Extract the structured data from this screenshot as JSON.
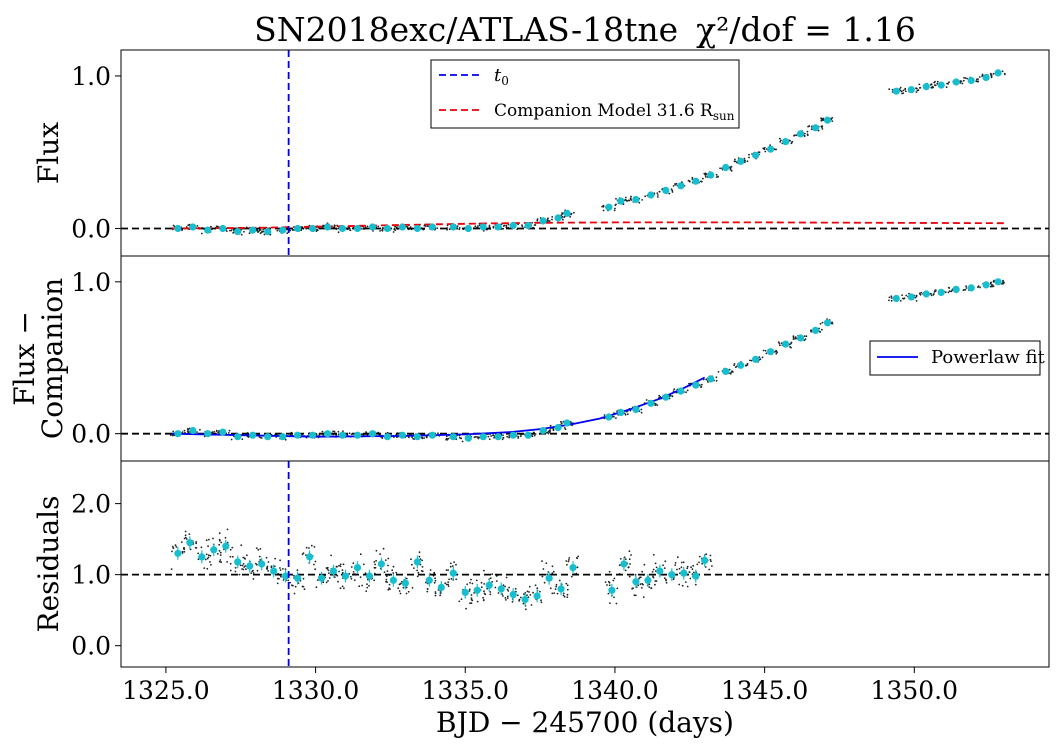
{
  "chart_data": {
    "type": "scatter",
    "title": "SN2018exc/ATLAS-18tne",
    "title_stat": "χ²/dof = 1.16",
    "xlabel": "BJD − 245700 (days)",
    "xlim": [
      1323.5,
      1354.5
    ],
    "xticks": [
      "1325.0",
      "1330.0",
      "1335.0",
      "1340.0",
      "1345.0",
      "1350.0"
    ],
    "t0": 1329.1,
    "panels": [
      {
        "id": "flux",
        "ylabel": [
          "Flux"
        ],
        "ylim": [
          -0.18,
          1.17
        ],
        "yticks": [
          "0.0",
          "1.0"
        ],
        "hline": 0.0,
        "legend": {
          "placement": "top-center",
          "entries": [
            "t0",
            "Companion Model  31.6  R_sun"
          ]
        },
        "companion_model": {
          "x": [
            1325.2,
            1328.0,
            1330.0,
            1332.0,
            1334.0,
            1336.0,
            1338.0,
            1340.0,
            1345.0,
            1353.0
          ],
          "y": [
            0.0,
            0.005,
            0.012,
            0.02,
            0.028,
            0.034,
            0.038,
            0.04,
            0.04,
            0.035
          ]
        }
      },
      {
        "id": "flux_minus_companion",
        "ylabel": [
          "Flux −",
          "Companion"
        ],
        "ylim": [
          -0.18,
          1.17
        ],
        "yticks": [
          "0.0",
          "1.0"
        ],
        "hline": 0.0,
        "legend": {
          "placement": "center-right",
          "entries": [
            "Powerlaw fit"
          ]
        },
        "powerlaw_fit": {
          "x": [
            1325.2,
            1330.0,
            1333.0,
            1335.0,
            1336.5,
            1337.5,
            1338.5,
            1339.5,
            1340.5,
            1341.5,
            1342.3,
            1343.0
          ],
          "y": [
            0.0,
            -0.02,
            -0.015,
            -0.005,
            0.01,
            0.03,
            0.06,
            0.1,
            0.16,
            0.23,
            0.3,
            0.37
          ]
        }
      },
      {
        "id": "residuals",
        "ylabel": [
          "Residuals"
        ],
        "ylim": [
          -0.3,
          2.6
        ],
        "yticks": [
          "0.0",
          "1.0",
          "2.0"
        ],
        "hline": 1.0
      }
    ],
    "binned": {
      "flux": {
        "x": [
          1325.4,
          1325.9,
          1326.4,
          1326.9,
          1327.4,
          1327.9,
          1328.4,
          1328.9,
          1329.4,
          1329.9,
          1330.4,
          1330.9,
          1331.4,
          1331.9,
          1332.4,
          1332.9,
          1333.4,
          1333.9,
          1334.6,
          1335.1,
          1335.6,
          1336.1,
          1336.6,
          1337.1,
          1337.6,
          1338.1,
          1338.4,
          1339.8,
          1340.2,
          1340.7,
          1341.2,
          1341.7,
          1342.2,
          1342.7,
          1343.2,
          1343.7,
          1344.2,
          1344.7,
          1345.2,
          1345.7,
          1346.2,
          1346.7,
          1347.1,
          1349.4,
          1349.9,
          1350.4,
          1350.9,
          1351.4,
          1351.9,
          1352.4,
          1352.8
        ],
        "y": [
          0.0,
          0.01,
          -0.01,
          0.0,
          -0.02,
          -0.01,
          -0.02,
          -0.01,
          0.0,
          0.0,
          0.01,
          0.0,
          0.0,
          0.01,
          0.0,
          0.01,
          0.0,
          0.01,
          0.01,
          0.0,
          0.01,
          0.01,
          0.02,
          0.02,
          0.05,
          0.07,
          0.1,
          0.14,
          0.18,
          0.19,
          0.22,
          0.25,
          0.28,
          0.31,
          0.35,
          0.4,
          0.44,
          0.48,
          0.52,
          0.57,
          0.62,
          0.66,
          0.71,
          0.9,
          0.91,
          0.93,
          0.94,
          0.96,
          0.97,
          0.99,
          1.02
        ]
      },
      "flux_minus_companion": {
        "x": [
          1325.4,
          1325.9,
          1326.4,
          1326.9,
          1327.4,
          1327.9,
          1328.4,
          1328.9,
          1329.4,
          1329.9,
          1330.4,
          1330.9,
          1331.4,
          1331.9,
          1332.4,
          1332.9,
          1333.4,
          1333.9,
          1334.6,
          1335.1,
          1335.6,
          1336.1,
          1336.6,
          1337.1,
          1337.6,
          1338.1,
          1338.4,
          1339.8,
          1340.2,
          1340.7,
          1341.2,
          1341.7,
          1342.2,
          1342.7,
          1343.2,
          1343.7,
          1344.2,
          1344.7,
          1345.2,
          1345.7,
          1346.2,
          1346.7,
          1347.1,
          1349.4,
          1349.9,
          1350.4,
          1350.9,
          1351.4,
          1351.9,
          1352.4,
          1352.8
        ],
        "y": [
          0.0,
          0.02,
          0.0,
          0.01,
          -0.02,
          -0.01,
          -0.02,
          -0.02,
          -0.01,
          -0.01,
          0.0,
          -0.01,
          -0.01,
          0.0,
          -0.02,
          -0.01,
          -0.02,
          -0.01,
          -0.02,
          -0.03,
          -0.02,
          -0.02,
          -0.01,
          -0.01,
          0.02,
          0.04,
          0.07,
          0.11,
          0.14,
          0.16,
          0.2,
          0.24,
          0.28,
          0.32,
          0.36,
          0.41,
          0.45,
          0.49,
          0.54,
          0.59,
          0.63,
          0.68,
          0.73,
          0.89,
          0.9,
          0.92,
          0.93,
          0.95,
          0.96,
          0.98,
          1.0
        ]
      },
      "residuals": {
        "x": [
          1325.4,
          1325.8,
          1326.2,
          1326.6,
          1327.0,
          1327.4,
          1327.8,
          1328.2,
          1328.6,
          1329.0,
          1329.4,
          1329.8,
          1330.2,
          1330.6,
          1331.0,
          1331.4,
          1331.8,
          1332.2,
          1332.6,
          1333.0,
          1333.4,
          1333.8,
          1334.2,
          1334.6,
          1335.0,
          1335.4,
          1335.8,
          1336.2,
          1336.6,
          1337.0,
          1337.4,
          1337.8,
          1338.2,
          1338.6,
          1339.9,
          1340.3,
          1340.7,
          1341.1,
          1341.5,
          1341.9,
          1342.3,
          1342.7,
          1343.0
        ],
        "y": [
          1.3,
          1.45,
          1.25,
          1.35,
          1.4,
          1.18,
          1.12,
          1.15,
          1.05,
          0.98,
          0.95,
          1.25,
          0.95,
          1.05,
          0.98,
          1.1,
          0.98,
          1.15,
          0.92,
          0.88,
          1.18,
          0.92,
          0.82,
          1.02,
          0.75,
          0.78,
          0.85,
          0.8,
          0.72,
          0.65,
          0.7,
          0.95,
          0.8,
          1.1,
          0.78,
          1.15,
          0.9,
          0.92,
          1.05,
          1.0,
          1.02,
          0.98,
          1.2
        ]
      }
    }
  }
}
